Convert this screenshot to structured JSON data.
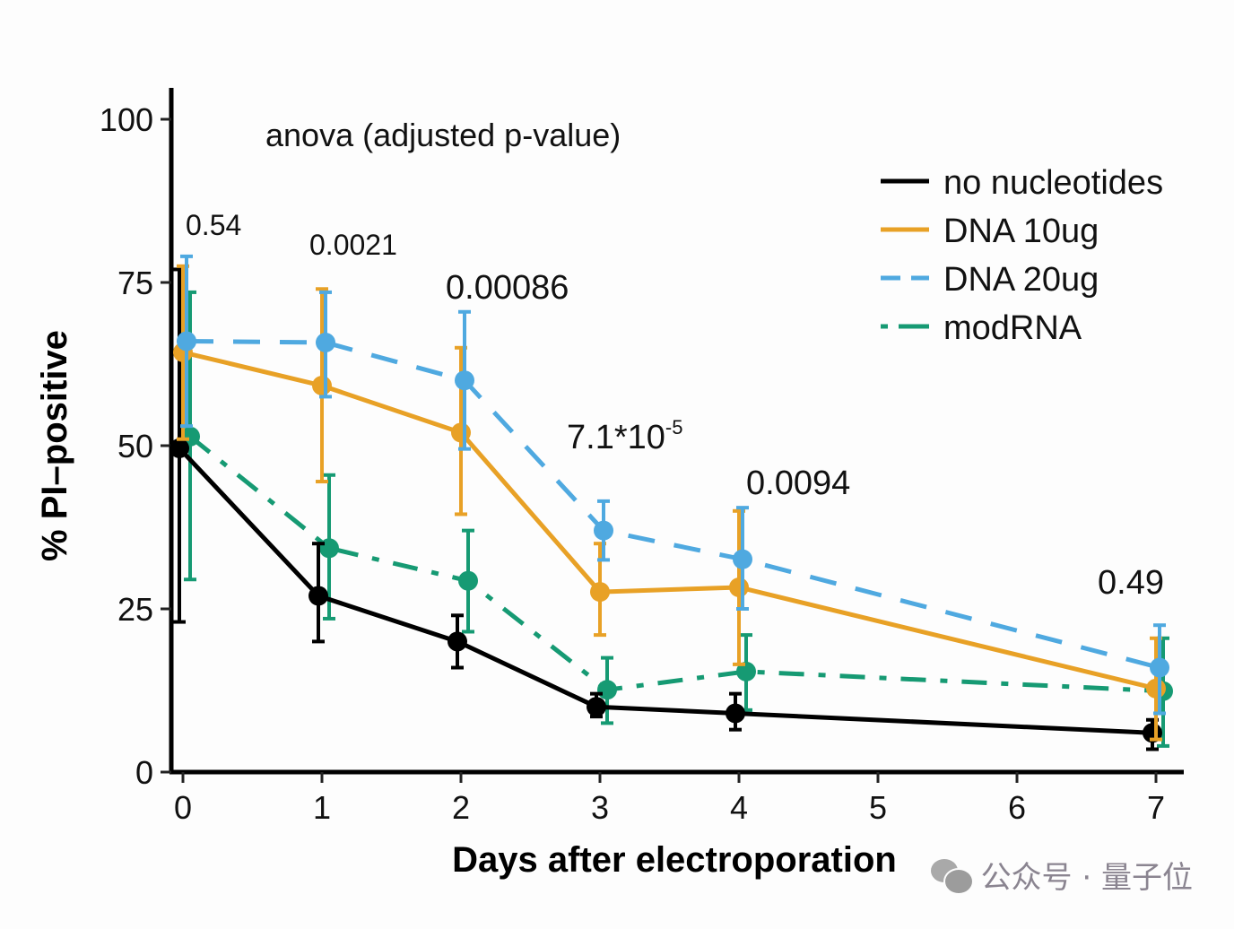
{
  "chart_data": {
    "type": "line",
    "title": "",
    "annotation_title": "anova (adjusted p-value)",
    "xlabel": "Days after electroporation",
    "ylabel": "% PI–positive",
    "xlim": [
      0,
      7
    ],
    "ylim": [
      0,
      100
    ],
    "x_ticks": [
      0,
      1,
      2,
      3,
      4,
      5,
      6,
      7
    ],
    "y_ticks": [
      0,
      25,
      50,
      75,
      100
    ],
    "grid": false,
    "legend_position": "top-right",
    "x": [
      0,
      1,
      2,
      3,
      4,
      7
    ],
    "series": [
      {
        "name": "no nucleotides",
        "color": "#000000",
        "line_style": "solid",
        "values": [
          49.6,
          27,
          20,
          10,
          9,
          6
        ],
        "err_low": [
          23,
          20,
          16,
          8.5,
          6.5,
          3.5
        ],
        "err_high": [
          77,
          35,
          24,
          12,
          12,
          8
        ]
      },
      {
        "name": "DNA 10ug",
        "color": "#e8a126",
        "line_style": "solid",
        "values": [
          64.3,
          59.2,
          52,
          27.6,
          28.3,
          12.8
        ],
        "err_low": [
          51,
          44.5,
          39.5,
          21,
          16.5,
          5
        ],
        "err_high": [
          77.5,
          74,
          65,
          35,
          40,
          20.5
        ]
      },
      {
        "name": "DNA 20ug",
        "color": "#4fa9e0",
        "line_style": "dashed",
        "values": [
          66,
          65.8,
          60,
          37,
          32.6,
          16
        ],
        "err_low": [
          53,
          57.5,
          49.5,
          32.5,
          25,
          9
        ],
        "err_high": [
          79,
          73.5,
          70.5,
          41.5,
          40.5,
          22.5
        ]
      },
      {
        "name": "modRNA",
        "color": "#169a73",
        "line_style": "dashdot",
        "values": [
          51.4,
          34.3,
          29.3,
          12.6,
          15.4,
          12.4
        ],
        "err_low": [
          29.5,
          23.5,
          21.5,
          7.5,
          9.5,
          4
        ],
        "err_high": [
          73.5,
          45.5,
          37,
          17.5,
          21,
          20.5
        ]
      }
    ],
    "annotations": [
      {
        "x": 0,
        "text": "0.54",
        "superscript": ""
      },
      {
        "x": 1,
        "text": "0.0021",
        "superscript": ""
      },
      {
        "x": 2,
        "text": "0.00086",
        "superscript": ""
      },
      {
        "x": 3,
        "text": "7.1*10",
        "superscript": "-5"
      },
      {
        "x": 4,
        "text": "0.0094",
        "superscript": ""
      },
      {
        "x": 7,
        "text": "0.49",
        "superscript": ""
      }
    ]
  },
  "watermark": {
    "text": "公众号 · 量子位",
    "icon": "wechat-icon"
  }
}
